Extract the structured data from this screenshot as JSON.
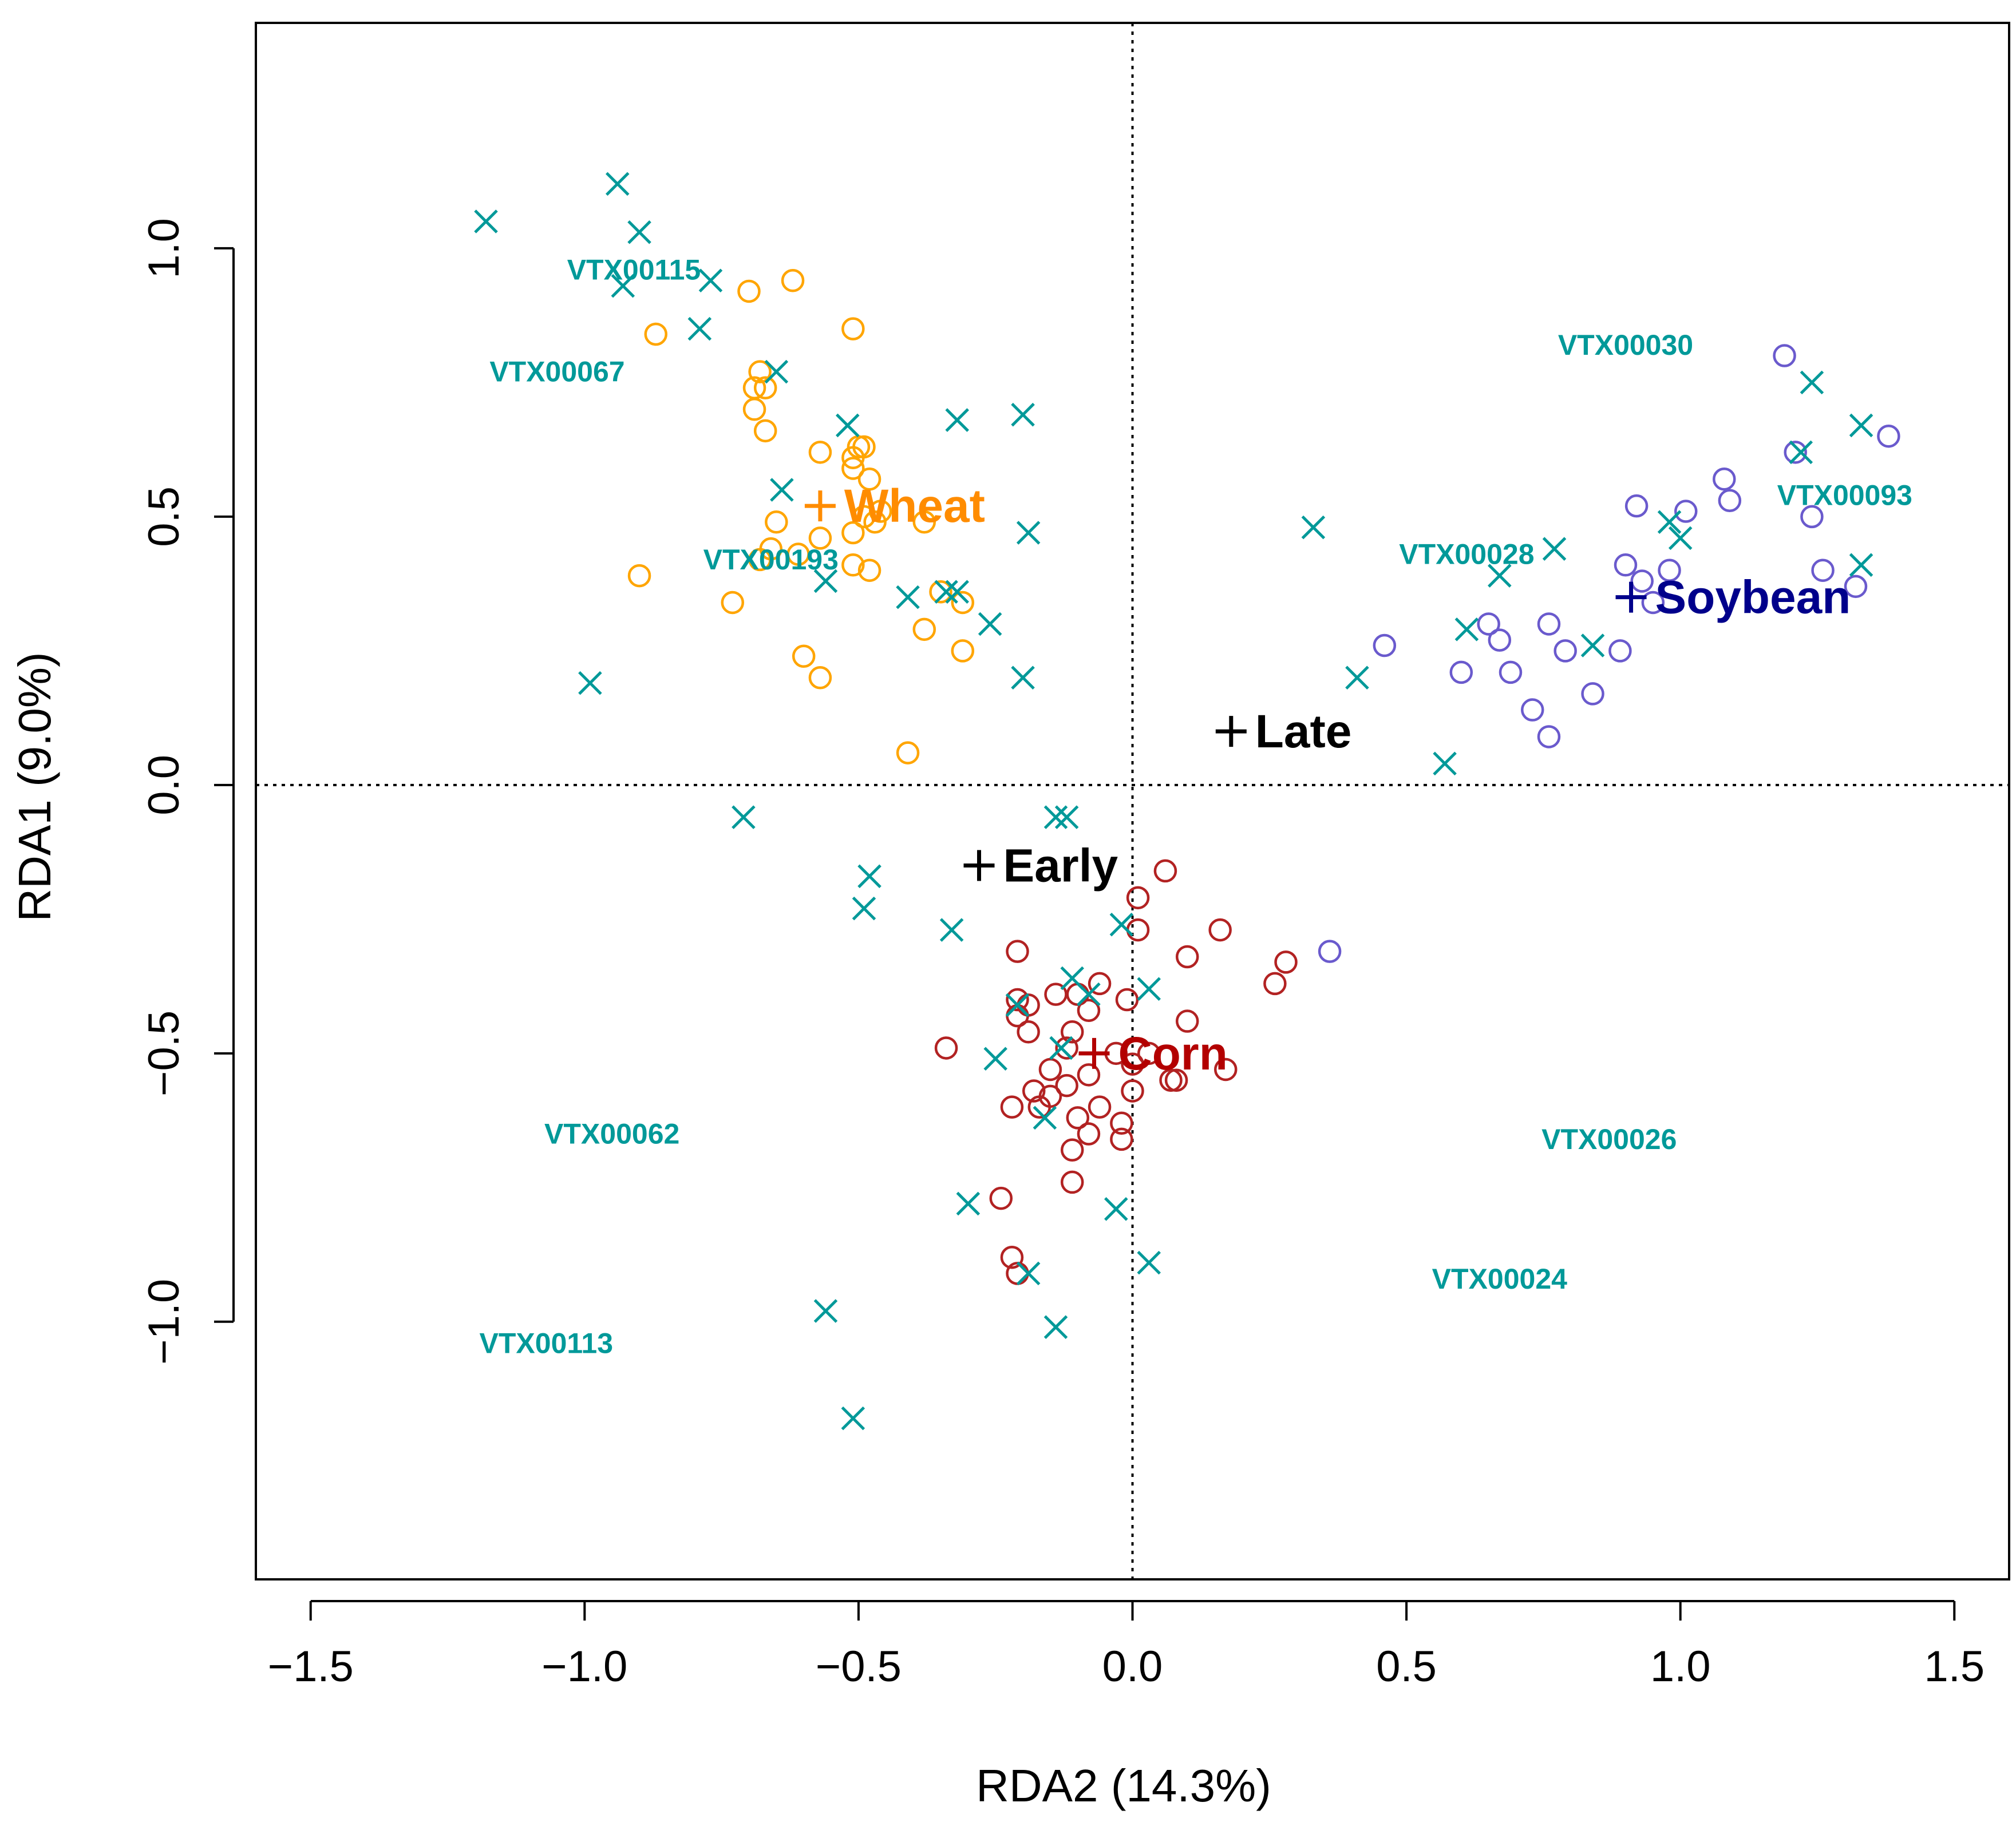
{
  "chart_data": {
    "type": "scatter",
    "title": "",
    "xlabel": "RDA2 (14.3%)",
    "ylabel": "RDA1 (9.0%)",
    "xlim": [
      -1.6,
      1.6
    ],
    "ylim": [
      -1.48,
      1.42
    ],
    "xticks": [
      -1.5,
      -1.0,
      -0.5,
      0.0,
      0.5,
      1.0,
      1.5
    ],
    "xtick_labels": [
      "−1.5",
      "−1.0",
      "−0.5",
      "0.0",
      "0.5",
      "1.0",
      "1.5"
    ],
    "yticks": [
      -1.0,
      -0.5,
      0.0,
      0.5,
      1.0
    ],
    "ytick_labels": [
      "−1.0",
      "−0.5",
      "0.0",
      "0.5",
      "1.0"
    ],
    "reference_lines": {
      "x": 0,
      "y": 0,
      "style": "dotted"
    },
    "colors": {
      "wheat": "#FFA500",
      "soybean": "#6A5ACD",
      "corn": "#B22222",
      "species": "#009999",
      "centroid_black": "#000000",
      "wheat_label": "#FF8C00",
      "soybean_label": "#00008B",
      "corn_label": "#B30000"
    },
    "sites": [
      {
        "name": "Wheat",
        "marker": "circle-open",
        "color": "#FFA500",
        "points": [
          [
            -0.62,
            0.94
          ],
          [
            -0.7,
            0.92
          ],
          [
            -0.87,
            0.84
          ],
          [
            -0.51,
            0.85
          ],
          [
            -0.68,
            0.77
          ],
          [
            -0.69,
            0.74
          ],
          [
            -0.67,
            0.74
          ],
          [
            -0.69,
            0.7
          ],
          [
            -0.67,
            0.66
          ],
          [
            -0.5,
            0.63
          ],
          [
            -0.49,
            0.63
          ],
          [
            -0.57,
            0.62
          ],
          [
            -0.51,
            0.61
          ],
          [
            -0.51,
            0.59
          ],
          [
            -0.48,
            0.57
          ],
          [
            -0.46,
            0.51
          ],
          [
            -0.49,
            0.5
          ],
          [
            -0.47,
            0.49
          ],
          [
            -0.38,
            0.49
          ],
          [
            -0.65,
            0.49
          ],
          [
            -0.57,
            0.46
          ],
          [
            -0.51,
            0.47
          ],
          [
            -0.66,
            0.44
          ],
          [
            -0.68,
            0.42
          ],
          [
            -0.61,
            0.43
          ],
          [
            -0.51,
            0.41
          ],
          [
            -0.48,
            0.4
          ],
          [
            -0.9,
            0.39
          ],
          [
            -0.73,
            0.34
          ],
          [
            -0.35,
            0.36
          ],
          [
            -0.31,
            0.34
          ],
          [
            -0.38,
            0.29
          ],
          [
            -0.6,
            0.24
          ],
          [
            -0.57,
            0.2
          ],
          [
            -0.31,
            0.25
          ],
          [
            -0.41,
            0.06
          ]
        ]
      },
      {
        "name": "Soybean",
        "marker": "circle-open",
        "color": "#6A5ACD",
        "points": [
          [
            1.19,
            0.8
          ],
          [
            1.38,
            0.65
          ],
          [
            1.21,
            0.62
          ],
          [
            1.08,
            0.57
          ],
          [
            1.09,
            0.53
          ],
          [
            0.92,
            0.52
          ],
          [
            1.01,
            0.51
          ],
          [
            1.24,
            0.5
          ],
          [
            0.9,
            0.41
          ],
          [
            0.98,
            0.4
          ],
          [
            1.26,
            0.4
          ],
          [
            0.93,
            0.38
          ],
          [
            1.32,
            0.37
          ],
          [
            0.95,
            0.34
          ],
          [
            0.46,
            0.26
          ],
          [
            0.65,
            0.3
          ],
          [
            0.67,
            0.27
          ],
          [
            0.76,
            0.3
          ],
          [
            0.79,
            0.25
          ],
          [
            0.89,
            0.25
          ],
          [
            0.6,
            0.21
          ],
          [
            0.69,
            0.21
          ],
          [
            0.84,
            0.17
          ],
          [
            0.73,
            0.14
          ],
          [
            0.76,
            0.09
          ],
          [
            0.36,
            -0.31
          ]
        ]
      },
      {
        "name": "Corn",
        "marker": "circle-open",
        "color": "#B22222",
        "points": [
          [
            0.06,
            -0.16
          ],
          [
            0.01,
            -0.21
          ],
          [
            0.16,
            -0.27
          ],
          [
            0.01,
            -0.27
          ],
          [
            -0.21,
            -0.31
          ],
          [
            0.1,
            -0.32
          ],
          [
            0.28,
            -0.33
          ],
          [
            0.26,
            -0.37
          ],
          [
            -0.06,
            -0.37
          ],
          [
            -0.21,
            -0.4
          ],
          [
            -0.19,
            -0.41
          ],
          [
            -0.14,
            -0.39
          ],
          [
            -0.1,
            -0.39
          ],
          [
            -0.01,
            -0.4
          ],
          [
            -0.21,
            -0.43
          ],
          [
            -0.19,
            -0.46
          ],
          [
            -0.08,
            -0.42
          ],
          [
            0.1,
            -0.44
          ],
          [
            -0.11,
            -0.46
          ],
          [
            -0.12,
            -0.49
          ],
          [
            -0.34,
            -0.49
          ],
          [
            -0.03,
            -0.5
          ],
          [
            0.0,
            -0.52
          ],
          [
            -0.08,
            -0.54
          ],
          [
            0.03,
            -0.5
          ],
          [
            0.17,
            -0.53
          ],
          [
            0.07,
            -0.55
          ],
          [
            0.08,
            -0.55
          ],
          [
            -0.15,
            -0.53
          ],
          [
            -0.12,
            -0.56
          ],
          [
            -0.15,
            -0.58
          ],
          [
            -0.18,
            -0.57
          ],
          [
            -0.17,
            -0.6
          ],
          [
            -0.22,
            -0.6
          ],
          [
            0.0,
            -0.57
          ],
          [
            -0.06,
            -0.6
          ],
          [
            -0.02,
            -0.63
          ],
          [
            -0.1,
            -0.62
          ],
          [
            -0.08,
            -0.65
          ],
          [
            -0.11,
            -0.68
          ],
          [
            -0.02,
            -0.66
          ],
          [
            -0.11,
            -0.74
          ],
          [
            -0.24,
            -0.77
          ],
          [
            -0.22,
            -0.88
          ],
          [
            -0.21,
            -0.91
          ]
        ]
      }
    ],
    "species_points": {
      "marker": "x",
      "color": "#009999",
      "points": [
        [
          -0.94,
          1.12
        ],
        [
          -1.18,
          1.05
        ],
        [
          -0.9,
          1.03
        ],
        [
          -0.93,
          0.93
        ],
        [
          -0.77,
          0.94
        ],
        [
          -0.79,
          0.85
        ],
        [
          -0.65,
          0.77
        ],
        [
          -0.52,
          0.67
        ],
        [
          -0.32,
          0.68
        ],
        [
          -0.2,
          0.69
        ],
        [
          -0.64,
          0.55
        ],
        [
          -0.19,
          0.47
        ],
        [
          -0.56,
          0.38
        ],
        [
          -0.41,
          0.35
        ],
        [
          -0.34,
          0.36
        ],
        [
          -0.32,
          0.36
        ],
        [
          -0.26,
          0.3
        ],
        [
          -0.99,
          0.19
        ],
        [
          -0.2,
          0.2
        ],
        [
          -0.71,
          -0.06
        ],
        [
          -0.14,
          -0.06
        ],
        [
          -0.12,
          -0.06
        ],
        [
          -0.48,
          -0.17
        ],
        [
          -0.49,
          -0.23
        ],
        [
          -0.33,
          -0.27
        ],
        [
          -0.02,
          -0.26
        ],
        [
          -0.11,
          -0.36
        ],
        [
          0.03,
          -0.38
        ],
        [
          -0.21,
          -0.41
        ],
        [
          -0.08,
          -0.39
        ],
        [
          -0.25,
          -0.51
        ],
        [
          -0.13,
          -0.49
        ],
        [
          -0.16,
          -0.62
        ],
        [
          -0.3,
          -0.78
        ],
        [
          -0.03,
          -0.79
        ],
        [
          0.03,
          -0.89
        ],
        [
          -0.19,
          -0.91
        ],
        [
          -0.56,
          -0.98
        ],
        [
          -0.14,
          -1.01
        ],
        [
          -0.51,
          -1.18
        ],
        [
          0.33,
          0.48
        ],
        [
          0.41,
          0.2
        ],
        [
          0.57,
          0.04
        ],
        [
          0.61,
          0.29
        ],
        [
          0.67,
          0.39
        ],
        [
          0.77,
          0.44
        ],
        [
          0.84,
          0.26
        ],
        [
          0.98,
          0.49
        ],
        [
          1.0,
          0.46
        ],
        [
          1.22,
          0.62
        ],
        [
          1.24,
          0.75
        ],
        [
          1.33,
          0.67
        ],
        [
          1.33,
          0.41
        ]
      ]
    },
    "centroids": [
      {
        "name": "Wheat",
        "x": -0.57,
        "y": 0.52,
        "color": "#FF8C00"
      },
      {
        "name": "Soybean",
        "x": 0.91,
        "y": 0.35,
        "color": "#00008B"
      },
      {
        "name": "Corn",
        "x": -0.07,
        "y": -0.5,
        "color": "#B30000"
      },
      {
        "name": "Late",
        "x": 0.18,
        "y": 0.1,
        "color": "#000000"
      },
      {
        "name": "Early",
        "x": -0.28,
        "y": -0.15,
        "color": "#000000"
      }
    ],
    "species_labels": [
      {
        "text": "VTX00115",
        "x": -0.91,
        "y": 0.96
      },
      {
        "text": "VTX00067",
        "x": -1.05,
        "y": 0.77
      },
      {
        "text": "VTX00193",
        "x": -0.66,
        "y": 0.42
      },
      {
        "text": "VTX00030",
        "x": 0.9,
        "y": 0.82
      },
      {
        "text": "VTX00093",
        "x": 1.3,
        "y": 0.54
      },
      {
        "text": "VTX00028",
        "x": 0.61,
        "y": 0.43
      },
      {
        "text": "VTX00062",
        "x": -0.95,
        "y": -0.65
      },
      {
        "text": "VTX00026",
        "x": 0.87,
        "y": -0.66
      },
      {
        "text": "VTX00024",
        "x": 0.67,
        "y": -0.92
      },
      {
        "text": "VTX00113",
        "x": -1.07,
        "y": -1.04
      }
    ]
  }
}
